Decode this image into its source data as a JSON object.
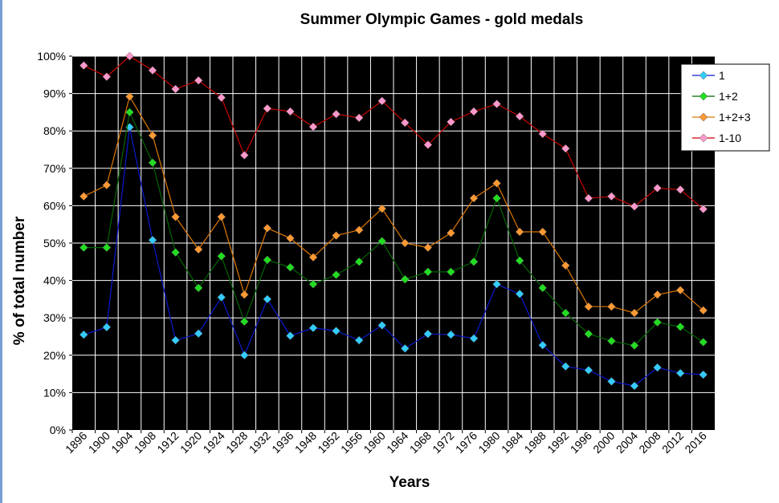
{
  "chart_data": {
    "type": "line",
    "title": "Summer Olympic Games - gold medals",
    "xlabel": "Years",
    "ylabel": "% of total number",
    "ylim": [
      0,
      100
    ],
    "yticks": [
      "0%",
      "10%",
      "20%",
      "30%",
      "40%",
      "50%",
      "60%",
      "70%",
      "80%",
      "90%",
      "100%"
    ],
    "grid": "on",
    "background": "#000000",
    "legend_position": "top-right",
    "categories": [
      "1896",
      "1900",
      "1904",
      "1908",
      "1912",
      "1920",
      "1924",
      "1928",
      "1932",
      "1936",
      "1948",
      "1952",
      "1956",
      "1960",
      "1964",
      "1968",
      "1972",
      "1976",
      "1980",
      "1984",
      "1988",
      "1992",
      "1996",
      "2000",
      "2004",
      "2008",
      "2012",
      "2016"
    ],
    "series": [
      {
        "name": "1",
        "line_color": "#0a1ad0",
        "marker_color": "#33ccff",
        "values": [
          25.5,
          27.5,
          81,
          50.8,
          24,
          25.8,
          35.5,
          20,
          35,
          25.2,
          27.3,
          26.5,
          24,
          28,
          21.8,
          25.7,
          25.5,
          24.5,
          39,
          36.4,
          22.7,
          17,
          16,
          13,
          11.8,
          16.7,
          15.2,
          14.8
        ]
      },
      {
        "name": "1+2",
        "line_color": "#006600",
        "marker_color": "#22dd22",
        "values": [
          48.8,
          48.8,
          85,
          71.5,
          47.5,
          38,
          46.5,
          29,
          45.5,
          43.5,
          39,
          41.5,
          45,
          50.5,
          40.3,
          42.3,
          42.3,
          45,
          62,
          45.3,
          38,
          31.3,
          25.7,
          23.8,
          22.6,
          28.8,
          27.6,
          23.5
        ]
      },
      {
        "name": "1+2+3",
        "line_color": "#dd7700",
        "marker_color": "#ff9933",
        "values": [
          62.5,
          65.5,
          89.2,
          78.8,
          57,
          48.3,
          57,
          36.2,
          54,
          51.3,
          46.2,
          52,
          53.5,
          59.2,
          50,
          48.8,
          52.7,
          62,
          66,
          53,
          53,
          44,
          33,
          33,
          31.3,
          36.2,
          37.4,
          32
        ]
      },
      {
        "name": "1-10",
        "line_color": "#cc0000",
        "marker_color": "#ff99cc",
        "values": [
          97.5,
          94.5,
          100,
          96.2,
          91.2,
          93.5,
          88.9,
          73.5,
          86,
          85.2,
          81.1,
          84.5,
          83.5,
          88,
          82.2,
          76.3,
          82.4,
          85.2,
          87.2,
          83.9,
          79.2,
          75.3,
          62,
          62.5,
          59.8,
          64.7,
          64.3,
          59.1
        ]
      }
    ]
  }
}
